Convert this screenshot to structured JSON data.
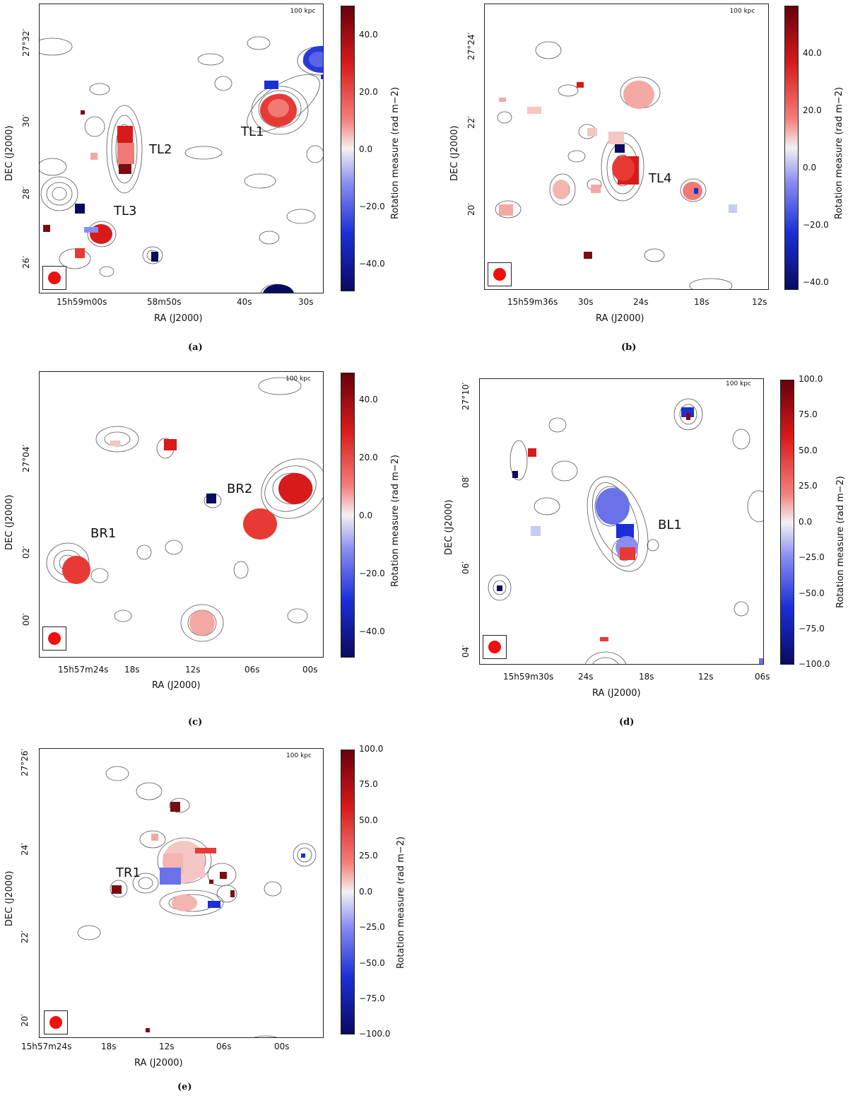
{
  "colors": {
    "colormap": [
      "#67000d",
      "#d81a1a",
      "#f4807a",
      "#f4f1f4",
      "#8a8ef2",
      "#1a2fd8",
      "#0a0a60"
    ],
    "contour": "#555555",
    "beam": "#f01010"
  },
  "panels": [
    {
      "caption": "(a)",
      "scalebar": "100 kpc",
      "xlabel": "RA (J2000)",
      "ylabel": "DEC (J2000)",
      "xticks": [
        "15h59m00s",
        "58m50s",
        "40s",
        "30s"
      ],
      "yticks": [
        "27°32′",
        "30′",
        "28′",
        "26′"
      ],
      "colorbar": {
        "label": "Rotation measure (rad m−2)",
        "range": [
          -50,
          50
        ],
        "ticks": [
          "40.0",
          "20.0",
          "0.0",
          "−20.0",
          "−40.0"
        ]
      },
      "sources": [
        "TL1",
        "TL2",
        "TL3"
      ]
    },
    {
      "caption": "(b)",
      "scalebar": "100 kpc",
      "xlabel": "RA (J2000)",
      "ylabel": "DEC (J2000)",
      "xticks": [
        "15h59m36s",
        "30s",
        "24s",
        "18s",
        "12s"
      ],
      "yticks": [
        "27°24′",
        "22′",
        "20′"
      ],
      "colorbar": {
        "label": "Rotation measure (rad m−2)",
        "range": [
          -50,
          50
        ],
        "ticks": [
          "40.0",
          "20.0",
          "0.0",
          "−20.0",
          "−40.0"
        ]
      },
      "sources": [
        "TL4"
      ]
    },
    {
      "caption": "(c)",
      "scalebar": "100 kpc",
      "xlabel": "RA (J2000)",
      "ylabel": "DEC (J2000)",
      "xticks": [
        "15h57m24s",
        "18s",
        "12s",
        "06s",
        "00s"
      ],
      "yticks": [
        "27°04′",
        "02′",
        "00′"
      ],
      "colorbar": {
        "label": "Rotation measure (rad m−2)",
        "range": [
          -50,
          50
        ],
        "ticks": [
          "40.0",
          "20.0",
          "0.0",
          "−20.0",
          "−40.0"
        ]
      },
      "sources": [
        "BR1",
        "BR2"
      ]
    },
    {
      "caption": "(d)",
      "scalebar": "100 kpc",
      "xlabel": "RA (J2000)",
      "ylabel": "DEC (J2000)",
      "xticks": [
        "15h59m30s",
        "24s",
        "18s",
        "12s",
        "06s"
      ],
      "yticks": [
        "27°10′",
        "08′",
        "06′",
        "04′"
      ],
      "colorbar": {
        "label": "Rotation measure (rad m−2)",
        "range": [
          -100,
          100
        ],
        "ticks": [
          "100.0",
          "75.0",
          "50.0",
          "25.0",
          "0.0",
          "−25.0",
          "−50.0",
          "−75.0",
          "−100.0"
        ]
      },
      "sources": [
        "BL1"
      ]
    },
    {
      "caption": "(e)",
      "scalebar": "100 kpc",
      "xlabel": "RA (J2000)",
      "ylabel": "DEC (J2000)",
      "xticks": [
        "15h57m24s",
        "18s",
        "12s",
        "06s",
        "00s"
      ],
      "yticks": [
        "27°26′",
        "24′",
        "22′",
        "20′"
      ],
      "colorbar": {
        "label": "Rotation measure (rad m−2)",
        "range": [
          -100,
          100
        ],
        "ticks": [
          "100.0",
          "75.0",
          "50.0",
          "25.0",
          "0.0",
          "−25.0",
          "−50.0",
          "−75.0",
          "−100.0"
        ]
      },
      "sources": [
        "TR1"
      ]
    }
  ]
}
